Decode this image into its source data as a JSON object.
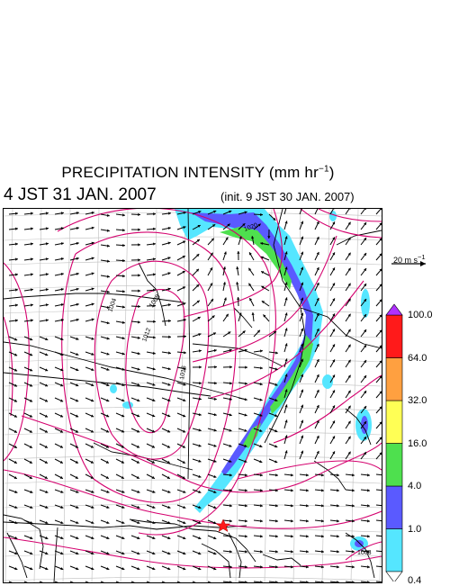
{
  "header": {
    "title": "PRECIPITATION INTENSITY (mm hr",
    "title_sup": "−1",
    "title_end": ")",
    "valid_time": "4 JST 31 JAN. 2007",
    "init_time": "(init. 9 JST 30 JAN. 2007)"
  },
  "wind_scale": {
    "label": "20 m s",
    "label_sup": "−1"
  },
  "colorbar": {
    "levels": [
      "0.4",
      "1.0",
      "4.0",
      "16.0",
      "32.0",
      "64.0",
      "100.0"
    ],
    "colors": [
      "#55e6ff",
      "#5a5aff",
      "#4ee04e",
      "#ffff55",
      "#ffa040",
      "#ff1a1a",
      "#b030ff"
    ]
  },
  "map": {
    "isobar_labels": [
      "1004",
      "1008",
      "1012",
      "1016",
      "1020",
      "1008"
    ],
    "marker": "red-star",
    "colors": {
      "isobar": "#d4006e",
      "coast": "#000000",
      "grid": "#bdbdbd"
    }
  }
}
